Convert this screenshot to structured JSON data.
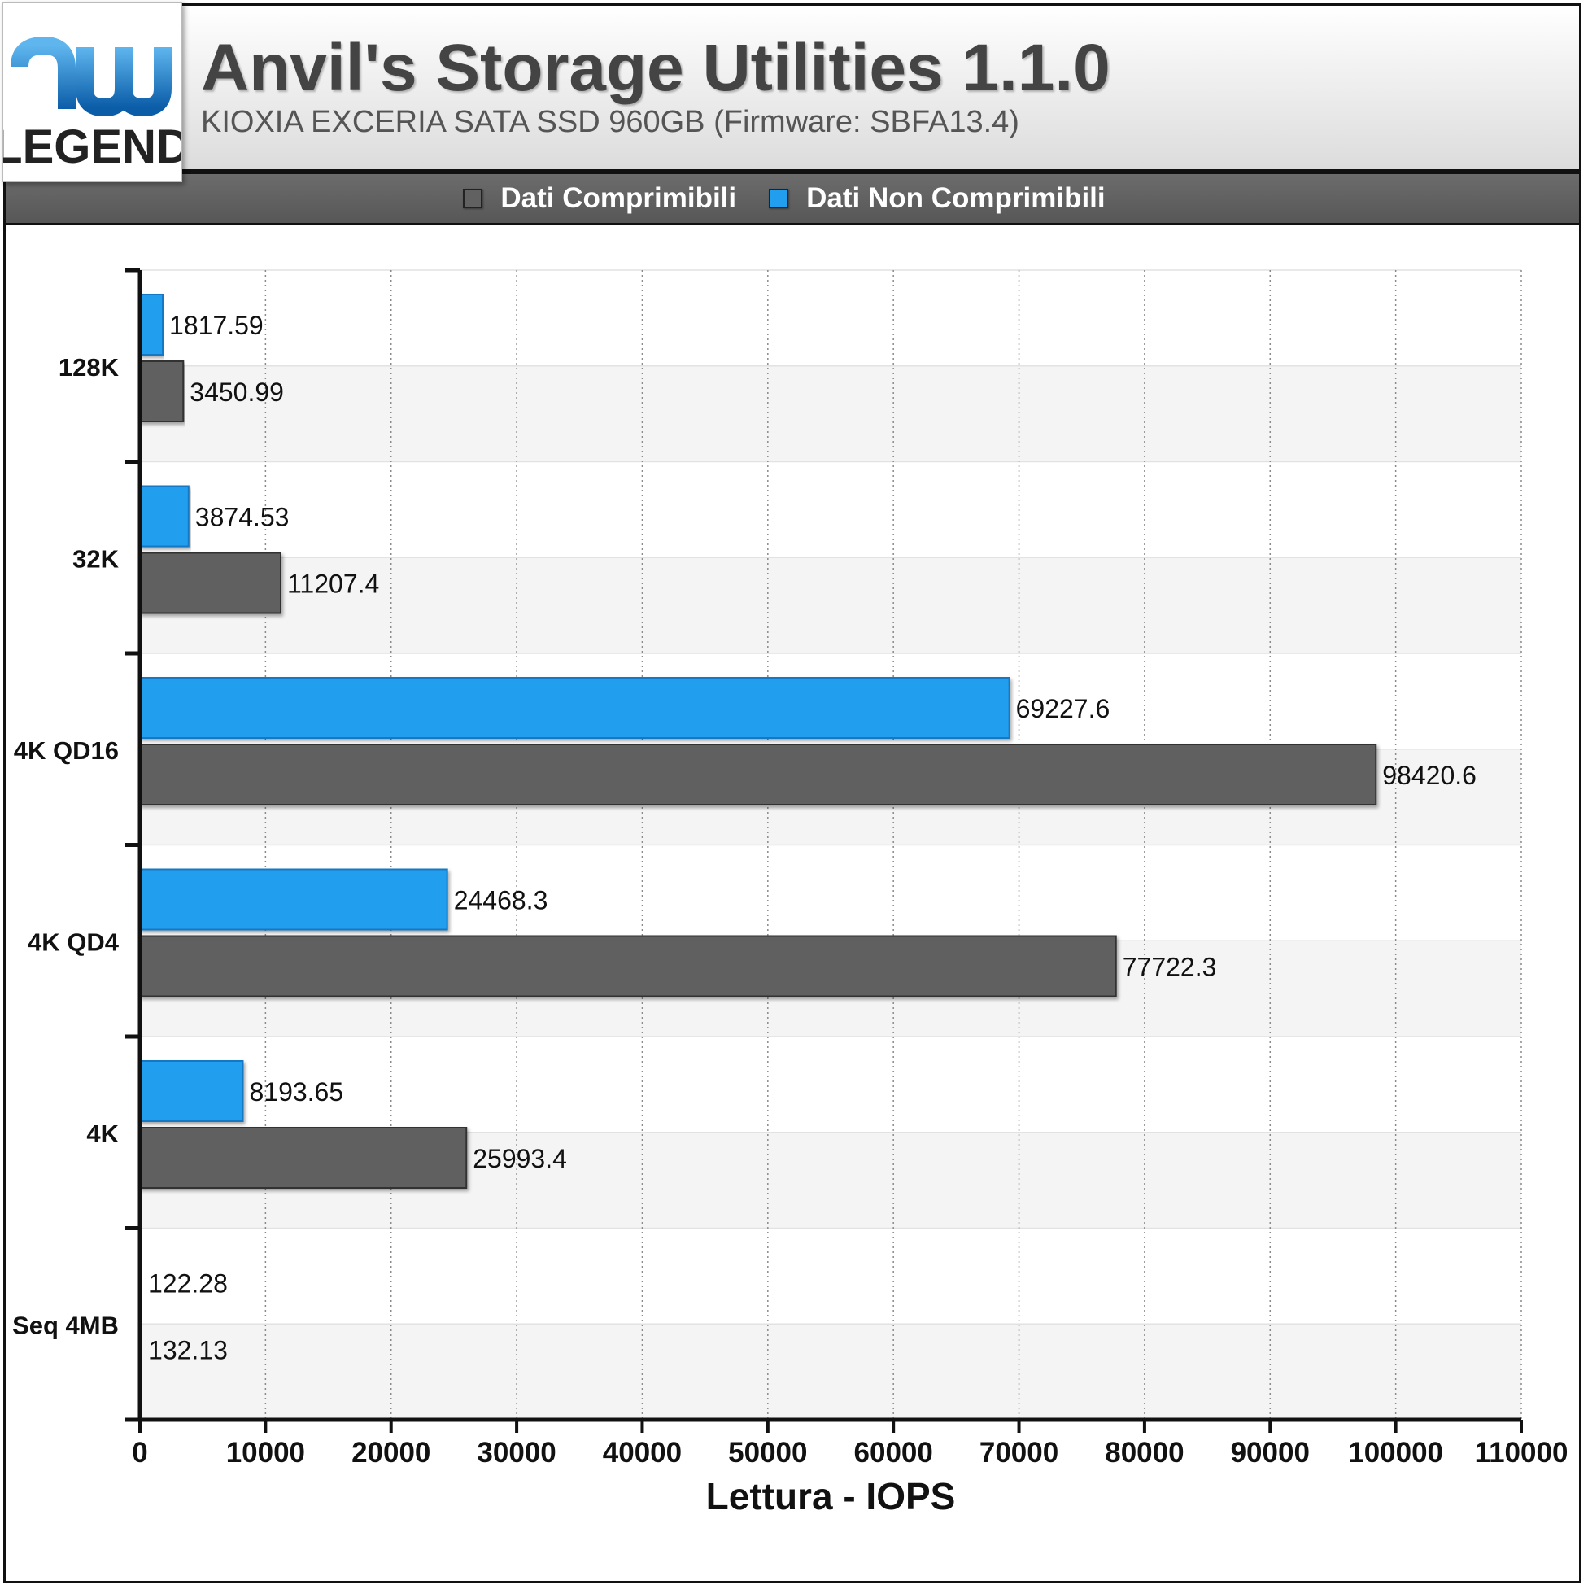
{
  "header": {
    "title": "Anvil's Storage Utilities 1.1.0",
    "subtitle": "KIOXIA EXCERIA SATA SSD 960GB (Firmware: SBFA13.4)"
  },
  "logo": {
    "top_text": "hw",
    "bottom_text": "LEGEND"
  },
  "chart_data": {
    "type": "bar",
    "orientation": "horizontal",
    "categories": [
      "128K",
      "32K",
      "4K QD16",
      "4K QD4",
      "4K",
      "Seq 4MB"
    ],
    "series": [
      {
        "name": "Dati Non Comprimibili",
        "color": "#219EEE",
        "values": [
          1817.59,
          3874.53,
          69227.6,
          24468.3,
          8193.65,
          122.28
        ]
      },
      {
        "name": "Dati Comprimibili",
        "color": "#616161",
        "values": [
          3450.99,
          11207.4,
          98420.6,
          77722.3,
          25993.4,
          132.13
        ]
      }
    ],
    "value_labels": {
      "Dati Non Comprimibili": [
        "1817.59",
        "3874.53",
        "69227.6",
        "24468.3",
        "8193.65",
        "122.28"
      ],
      "Dati Comprimibili": [
        "3450.99",
        "11207.4",
        "98420.6",
        "77722.3",
        "25993.4",
        "132.13"
      ]
    },
    "xlabel": "Lettura - IOPS",
    "ylabel": "",
    "xlim": [
      0,
      110000
    ],
    "xticks": [
      "0",
      "10000",
      "20000",
      "30000",
      "40000",
      "50000",
      "60000",
      "70000",
      "80000",
      "90000",
      "100000",
      "110000"
    ],
    "grid": "vertical-dotted",
    "legend": "top-center"
  },
  "legend": {
    "items": [
      {
        "label": "Dati Comprimibili",
        "color": "#616161"
      },
      {
        "label": "Dati Non Comprimibili",
        "color": "#219EEE"
      }
    ]
  }
}
